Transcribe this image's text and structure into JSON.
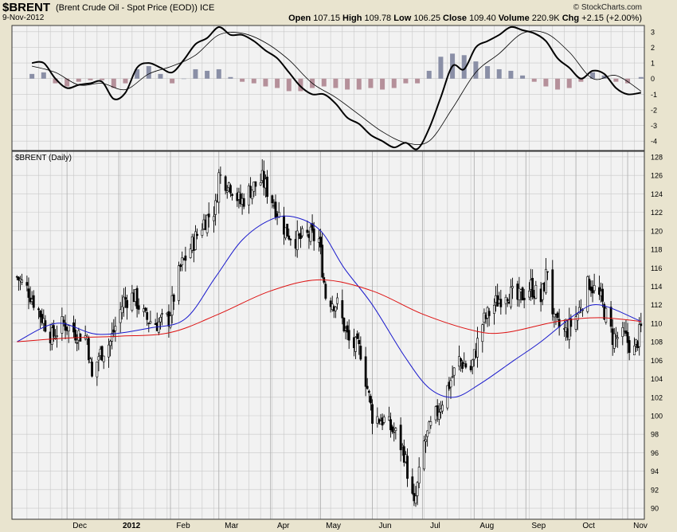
{
  "header": {
    "ticker": "$BRENT",
    "description": "(Brent Crude Oil - Spot Price (EOD))",
    "exchange": "ICE",
    "date": "9-Nov-2012",
    "brand": "© StockCharts.com",
    "open_label": "Open",
    "open": "107.15",
    "high_label": "High",
    "high": "109.78",
    "low_label": "Low",
    "low": "106.25",
    "close_label": "Close",
    "close": "109.40",
    "volume_label": "Volume",
    "volume": "220.9K",
    "chg_label": "Chg",
    "chg": "+2.15 (+2.00%)"
  },
  "main_panel_label": "$BRENT (Daily)",
  "colors": {
    "background": "#e9e4cf",
    "panel": "#f2f2f2",
    "grid": "#c8c8c8",
    "price": "#000000",
    "ma50": "#1a1acc",
    "ma200": "#dd1111",
    "hist_positive": "#8a8fa6",
    "hist_negative": "#b5909a"
  },
  "chart_data": [
    {
      "type": "line",
      "panel": "macd",
      "ylim": [
        -4.6,
        3.4
      ],
      "yticks": [
        3,
        2,
        1,
        0,
        -1,
        -2,
        -3,
        -4
      ],
      "series": [
        {
          "role": "macd",
          "points": [
            [
              "2011-11-10",
              1.0
            ],
            [
              "2011-11-17",
              1.0
            ],
            [
              "2011-11-24",
              0.0
            ],
            [
              "2011-12-01",
              -0.6
            ],
            [
              "2011-12-08",
              -0.4
            ],
            [
              "2011-12-15",
              -0.3
            ],
            [
              "2011-12-22",
              -0.2
            ],
            [
              "2011-12-29",
              -1.3
            ],
            [
              "2012-01-05",
              -0.9
            ],
            [
              "2012-01-12",
              0.7
            ],
            [
              "2012-01-19",
              1.0
            ],
            [
              "2012-01-26",
              0.7
            ],
            [
              "2012-02-02",
              0.4
            ],
            [
              "2012-02-09",
              1.2
            ],
            [
              "2012-02-16",
              2.2
            ],
            [
              "2012-02-23",
              2.6
            ],
            [
              "2012-03-01",
              3.3
            ],
            [
              "2012-03-08",
              2.8
            ],
            [
              "2012-03-15",
              2.8
            ],
            [
              "2012-03-22",
              2.4
            ],
            [
              "2012-03-29",
              1.8
            ],
            [
              "2012-04-05",
              1.3
            ],
            [
              "2012-04-12",
              0.4
            ],
            [
              "2012-04-19",
              -0.5
            ],
            [
              "2012-04-26",
              -1.0
            ],
            [
              "2012-05-03",
              -1.0
            ],
            [
              "2012-05-10",
              -1.6
            ],
            [
              "2012-05-17",
              -2.5
            ],
            [
              "2012-05-24",
              -2.9
            ],
            [
              "2012-05-31",
              -3.6
            ],
            [
              "2012-06-07",
              -4.0
            ],
            [
              "2012-06-14",
              -4.4
            ],
            [
              "2012-06-21",
              -4.1
            ],
            [
              "2012-06-28",
              -4.5
            ],
            [
              "2012-07-05",
              -3.2
            ],
            [
              "2012-07-12",
              -1.2
            ],
            [
              "2012-07-19",
              0.8
            ],
            [
              "2012-07-26",
              0.6
            ],
            [
              "2012-08-02",
              2.0
            ],
            [
              "2012-08-09",
              2.4
            ],
            [
              "2012-08-16",
              2.8
            ],
            [
              "2012-08-23",
              3.3
            ],
            [
              "2012-08-30",
              3.1
            ],
            [
              "2012-09-06",
              2.9
            ],
            [
              "2012-09-13",
              2.4
            ],
            [
              "2012-09-20",
              1.3
            ],
            [
              "2012-09-27",
              0.7
            ],
            [
              "2012-10-04",
              0.0
            ],
            [
              "2012-10-11",
              0.5
            ],
            [
              "2012-10-18",
              0.3
            ],
            [
              "2012-10-25",
              -0.6
            ],
            [
              "2012-11-01",
              -1.0
            ],
            [
              "2012-11-09",
              -0.9
            ]
          ]
        },
        {
          "role": "signal",
          "points": [
            [
              "2011-11-10",
              0.8
            ],
            [
              "2011-11-24",
              0.4
            ],
            [
              "2011-12-08",
              -0.4
            ],
            [
              "2011-12-22",
              -0.3
            ],
            [
              "2012-01-05",
              -0.7
            ],
            [
              "2012-01-19",
              0.3
            ],
            [
              "2012-02-02",
              0.8
            ],
            [
              "2012-02-16",
              1.5
            ],
            [
              "2012-03-01",
              2.8
            ],
            [
              "2012-03-15",
              2.9
            ],
            [
              "2012-03-29",
              2.3
            ],
            [
              "2012-04-12",
              1.2
            ],
            [
              "2012-04-26",
              -0.3
            ],
            [
              "2012-05-10",
              -1.2
            ],
            [
              "2012-05-24",
              -2.3
            ],
            [
              "2012-06-07",
              -3.4
            ],
            [
              "2012-06-21",
              -4.1
            ],
            [
              "2012-07-05",
              -4.0
            ],
            [
              "2012-07-19",
              -1.9
            ],
            [
              "2012-08-02",
              0.4
            ],
            [
              "2012-08-16",
              1.6
            ],
            [
              "2012-08-30",
              2.9
            ],
            [
              "2012-09-13",
              2.9
            ],
            [
              "2012-09-27",
              1.7
            ],
            [
              "2012-10-11",
              0.0
            ],
            [
              "2012-10-25",
              0.2
            ],
            [
              "2012-11-09",
              -0.8
            ]
          ]
        },
        {
          "role": "histogram",
          "points": [
            [
              "2011-11-10",
              0.3
            ],
            [
              "2011-11-17",
              0.4
            ],
            [
              "2011-11-24",
              -0.3
            ],
            [
              "2011-12-01",
              -0.5
            ],
            [
              "2011-12-08",
              -0.2
            ],
            [
              "2011-12-15",
              -0.1
            ],
            [
              "2011-12-22",
              -0.1
            ],
            [
              "2011-12-29",
              -0.6
            ],
            [
              "2012-01-05",
              -0.3
            ],
            [
              "2012-01-12",
              0.6
            ],
            [
              "2012-01-19",
              0.8
            ],
            [
              "2012-01-26",
              0.3
            ],
            [
              "2012-02-02",
              -0.3
            ],
            [
              "2012-02-09",
              0.0
            ],
            [
              "2012-02-16",
              0.6
            ],
            [
              "2012-02-23",
              0.5
            ],
            [
              "2012-03-01",
              0.6
            ],
            [
              "2012-03-08",
              0.1
            ],
            [
              "2012-03-15",
              -0.2
            ],
            [
              "2012-03-22",
              -0.3
            ],
            [
              "2012-03-29",
              -0.5
            ],
            [
              "2012-04-05",
              -0.6
            ],
            [
              "2012-04-12",
              -0.8
            ],
            [
              "2012-04-19",
              -0.8
            ],
            [
              "2012-04-26",
              -0.6
            ],
            [
              "2012-05-03",
              -0.5
            ],
            [
              "2012-05-10",
              -0.6
            ],
            [
              "2012-05-17",
              -0.7
            ],
            [
              "2012-05-24",
              -0.7
            ],
            [
              "2012-05-31",
              -0.6
            ],
            [
              "2012-06-07",
              -0.7
            ],
            [
              "2012-06-14",
              -0.6
            ],
            [
              "2012-06-21",
              -0.3
            ],
            [
              "2012-06-28",
              -0.3
            ],
            [
              "2012-07-05",
              0.5
            ],
            [
              "2012-07-12",
              1.4
            ],
            [
              "2012-07-19",
              1.6
            ],
            [
              "2012-07-26",
              1.5
            ],
            [
              "2012-08-02",
              1.1
            ],
            [
              "2012-08-09",
              0.8
            ],
            [
              "2012-08-16",
              0.6
            ],
            [
              "2012-08-23",
              0.5
            ],
            [
              "2012-08-30",
              0.2
            ],
            [
              "2012-09-06",
              -0.2
            ],
            [
              "2012-09-13",
              -0.5
            ],
            [
              "2012-09-20",
              -0.7
            ],
            [
              "2012-09-27",
              -0.6
            ],
            [
              "2012-10-04",
              -0.2
            ],
            [
              "2012-10-11",
              0.4
            ],
            [
              "2012-10-18",
              0.2
            ],
            [
              "2012-10-25",
              -0.2
            ],
            [
              "2012-11-01",
              -0.3
            ],
            [
              "2012-11-09",
              0.1
            ]
          ]
        }
      ]
    },
    {
      "type": "candlestick",
      "panel": "price",
      "ylim": [
        88.8,
        128.6
      ],
      "yticks": [
        128,
        126,
        124,
        122,
        120,
        118,
        116,
        114,
        112,
        110,
        108,
        106,
        104,
        102,
        100,
        98,
        96,
        94,
        92,
        90
      ],
      "x_tick_labels": [
        "Dec",
        "2012",
        "Feb",
        "Mar",
        "Apr",
        "May",
        "Jun",
        "Jul",
        "Aug",
        "Sep",
        "Oct",
        "Nov"
      ],
      "x_tick_dates": [
        "2011-12-01",
        "2012-01-01",
        "2012-02-01",
        "2012-03-01",
        "2012-04-01",
        "2012-05-01",
        "2012-06-01",
        "2012-07-01",
        "2012-08-01",
        "2012-09-01",
        "2012-10-01",
        "2012-11-01"
      ],
      "price_path": [
        [
          "2011-11-01",
          115.0
        ],
        [
          "2011-11-08",
          113.5
        ],
        [
          "2011-11-15",
          111.0
        ],
        [
          "2011-11-22",
          108.5
        ],
        [
          "2011-11-29",
          110.0
        ],
        [
          "2011-12-06",
          109.0
        ],
        [
          "2011-12-13",
          108.5
        ],
        [
          "2011-12-16",
          104.0
        ],
        [
          "2011-12-20",
          106.5
        ],
        [
          "2011-12-27",
          108.0
        ],
        [
          "2012-01-04",
          112.5
        ],
        [
          "2012-01-10",
          113.0
        ],
        [
          "2012-01-17",
          110.5
        ],
        [
          "2012-01-24",
          110.0
        ],
        [
          "2012-01-31",
          110.5
        ],
        [
          "2012-02-07",
          116.0
        ],
        [
          "2012-02-14",
          118.5
        ],
        [
          "2012-02-21",
          121.0
        ],
        [
          "2012-02-28",
          122.5
        ],
        [
          "2012-03-01",
          126.0
        ],
        [
          "2012-03-08",
          125.0
        ],
        [
          "2012-03-14",
          123.0
        ],
        [
          "2012-03-20",
          124.5
        ],
        [
          "2012-03-27",
          125.5
        ],
        [
          "2012-04-03",
          123.0
        ],
        [
          "2012-04-10",
          120.0
        ],
        [
          "2012-04-17",
          119.0
        ],
        [
          "2012-04-24",
          119.5
        ],
        [
          "2012-04-30",
          119.0
        ],
        [
          "2012-05-04",
          113.0
        ],
        [
          "2012-05-11",
          112.0
        ],
        [
          "2012-05-18",
          108.0
        ],
        [
          "2012-05-25",
          107.0
        ],
        [
          "2012-06-01",
          100.0
        ],
        [
          "2012-06-08",
          99.5
        ],
        [
          "2012-06-15",
          98.0
        ],
        [
          "2012-06-20",
          96.0
        ],
        [
          "2012-06-26",
          90.0
        ],
        [
          "2012-07-02",
          97.0
        ],
        [
          "2012-07-09",
          100.0
        ],
        [
          "2012-07-16",
          103.0
        ],
        [
          "2012-07-23",
          106.0
        ],
        [
          "2012-07-30",
          105.0
        ],
        [
          "2012-08-06",
          110.0
        ],
        [
          "2012-08-13",
          112.0
        ],
        [
          "2012-08-20",
          113.5
        ],
        [
          "2012-08-27",
          112.5
        ],
        [
          "2012-09-04",
          114.0
        ],
        [
          "2012-09-10",
          112.5
        ],
        [
          "2012-09-14",
          116.0
        ],
        [
          "2012-09-18",
          110.0
        ],
        [
          "2012-09-25",
          109.0
        ],
        [
          "2012-10-02",
          111.0
        ],
        [
          "2012-10-09",
          114.5
        ],
        [
          "2012-10-16",
          112.5
        ],
        [
          "2012-10-23",
          108.5
        ],
        [
          "2012-10-30",
          108.5
        ],
        [
          "2012-11-05",
          107.0
        ],
        [
          "2012-11-09",
          109.4
        ]
      ],
      "series": [
        {
          "role": "ma50",
          "points": [
            [
              "2011-11-01",
              108.0
            ],
            [
              "2011-11-25",
              110.0
            ],
            [
              "2011-12-20",
              108.8
            ],
            [
              "2012-01-20",
              109.5
            ],
            [
              "2012-02-10",
              110.5
            ],
            [
              "2012-02-28",
              115.0
            ],
            [
              "2012-03-15",
              119.0
            ],
            [
              "2012-04-01",
              121.2
            ],
            [
              "2012-04-15",
              121.5
            ],
            [
              "2012-05-01",
              120.0
            ],
            [
              "2012-05-15",
              116.0
            ],
            [
              "2012-06-01",
              112.0
            ],
            [
              "2012-06-20",
              106.5
            ],
            [
              "2012-07-05",
              103.0
            ],
            [
              "2012-07-20",
              102.0
            ],
            [
              "2012-08-05",
              103.5
            ],
            [
              "2012-08-25",
              106.0
            ],
            [
              "2012-09-10",
              108.0
            ],
            [
              "2012-10-01",
              111.0
            ],
            [
              "2012-10-15",
              112.0
            ],
            [
              "2012-11-09",
              110.2
            ]
          ]
        },
        {
          "role": "ma200",
          "points": [
            [
              "2011-11-01",
              108.0
            ],
            [
              "2011-12-01",
              108.4
            ],
            [
              "2012-01-01",
              108.6
            ],
            [
              "2012-02-01",
              109.0
            ],
            [
              "2012-03-01",
              111.0
            ],
            [
              "2012-04-01",
              113.5
            ],
            [
              "2012-05-01",
              114.7
            ],
            [
              "2012-06-01",
              113.5
            ],
            [
              "2012-07-01",
              111.0
            ],
            [
              "2012-08-01",
              109.2
            ],
            [
              "2012-08-20",
              109.0
            ],
            [
              "2012-09-20",
              110.2
            ],
            [
              "2012-10-15",
              110.6
            ],
            [
              "2012-11-09",
              110.2
            ]
          ]
        }
      ]
    }
  ]
}
